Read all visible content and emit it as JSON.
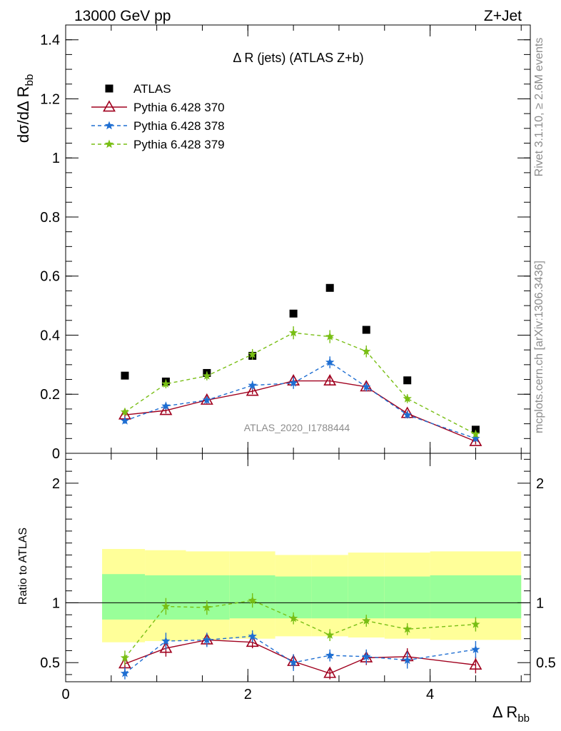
{
  "header": {
    "left_title": "13000 GeV pp",
    "right_title": "Z+Jet"
  },
  "side": {
    "rivet_label": "Rivet 3.1.10, ≥ 2.6M events",
    "mcplots_label": "mcplots.cern.ch [arXiv:1306.3436]"
  },
  "colors": {
    "atlas": "#000000",
    "p370": "#a0001e",
    "p378": "#1e6ed2",
    "p379": "#78be14",
    "band_yellow": "#ffff99",
    "band_green": "#99ff99"
  },
  "chart_data": [
    {
      "type": "scatter",
      "panel": "main",
      "title": "Δ R (jets) (ATLAS Z+b)",
      "analysis_label": "ATLAS_2020_I1788444",
      "ylabel": "dσ/dΔ R",
      "ylabel_sub": "bb",
      "xlim": [
        0,
        5.1
      ],
      "ylim": [
        0,
        1.45
      ],
      "yticks": [
        "0",
        "0.2",
        "0.4",
        "0.6",
        "0.8",
        "1",
        "1.2",
        "1.4"
      ],
      "ytick_values": [
        0,
        0.2,
        0.4,
        0.6,
        0.8,
        1.0,
        1.2,
        1.4
      ],
      "legend_position": "top-left",
      "x": [
        0.65,
        1.1,
        1.55,
        2.05,
        2.5,
        2.9,
        3.3,
        3.75,
        4.5
      ],
      "series": [
        {
          "name": "ATLAS",
          "style": "square",
          "color": "#000000",
          "values": [
            0.263,
            0.243,
            0.272,
            0.33,
            0.473,
            0.56,
            0.418,
            0.247,
            0.08
          ]
        },
        {
          "name": "Pythia 6.428 370",
          "style": "triangle-solid",
          "color": "#a0001e",
          "values": [
            0.13,
            0.145,
            0.18,
            0.21,
            0.245,
            0.245,
            0.225,
            0.135,
            0.04
          ],
          "errors": [
            0.01,
            0.01,
            0.01,
            0.01,
            0.015,
            0.015,
            0.015,
            0.01,
            0.01
          ]
        },
        {
          "name": "Pythia 6.428 378",
          "style": "star-dashed",
          "color": "#1e6ed2",
          "values": [
            0.11,
            0.16,
            0.18,
            0.23,
            0.238,
            0.308,
            0.225,
            0.13,
            0.05
          ],
          "errors": [
            0.01,
            0.012,
            0.012,
            0.015,
            0.02,
            0.02,
            0.015,
            0.012,
            0.01
          ]
        },
        {
          "name": "Pythia 6.428 379",
          "style": "star-dashed",
          "color": "#78be14",
          "values": [
            0.14,
            0.235,
            0.262,
            0.335,
            0.408,
            0.395,
            0.345,
            0.185,
            0.065
          ],
          "errors": [
            0.012,
            0.015,
            0.015,
            0.018,
            0.022,
            0.022,
            0.02,
            0.015,
            0.01
          ]
        }
      ]
    },
    {
      "type": "scatter",
      "panel": "ratio",
      "ylabel": "Ratio to ATLAS",
      "xlabel": "Δ R",
      "xlabel_sub": "bb",
      "xlim": [
        0,
        5.1
      ],
      "ylim": [
        0.34,
        2.25
      ],
      "xticks": [
        "0",
        "2",
        "4"
      ],
      "xtick_values": [
        0,
        2,
        4
      ],
      "yticks": [
        "0.5",
        "1",
        "2"
      ],
      "ytick_values": [
        0.5,
        1,
        2
      ],
      "x": [
        0.65,
        1.1,
        1.55,
        2.05,
        2.5,
        2.9,
        3.3,
        3.75,
        4.5
      ],
      "bins": [
        [
          0.4,
          0.87
        ],
        [
          0.87,
          1.32
        ],
        [
          1.32,
          1.8
        ],
        [
          1.8,
          2.3
        ],
        [
          2.3,
          2.7
        ],
        [
          2.7,
          3.1
        ],
        [
          3.1,
          3.5
        ],
        [
          3.5,
          4.0
        ],
        [
          4.0,
          5.0
        ]
      ],
      "band_yellow": [
        [
          0.67,
          1.45
        ],
        [
          0.68,
          1.44
        ],
        [
          0.69,
          1.43
        ],
        [
          0.7,
          1.43
        ],
        [
          0.72,
          1.4
        ],
        [
          0.72,
          1.4
        ],
        [
          0.71,
          1.42
        ],
        [
          0.7,
          1.42
        ],
        [
          0.69,
          1.43
        ]
      ],
      "band_green": [
        [
          0.86,
          1.24
        ],
        [
          0.86,
          1.23
        ],
        [
          0.86,
          1.23
        ],
        [
          0.87,
          1.23
        ],
        [
          0.87,
          1.22
        ],
        [
          0.87,
          1.22
        ],
        [
          0.87,
          1.22
        ],
        [
          0.87,
          1.22
        ],
        [
          0.87,
          1.23
        ]
      ],
      "series": [
        {
          "name": "Pythia 6.428 370",
          "style": "triangle-solid",
          "color": "#a0001e",
          "values": [
            0.49,
            0.62,
            0.69,
            0.67,
            0.51,
            0.41,
            0.54,
            0.55,
            0.48
          ],
          "errors": [
            0.06,
            0.07,
            0.05,
            0.05,
            0.06,
            0.05,
            0.06,
            0.07,
            0.07
          ]
        },
        {
          "name": "Pythia 6.428 378",
          "style": "star-dashed",
          "color": "#1e6ed2",
          "values": [
            0.41,
            0.68,
            0.69,
            0.72,
            0.5,
            0.56,
            0.55,
            0.52,
            0.61
          ],
          "errors": [
            0.05,
            0.07,
            0.06,
            0.05,
            0.07,
            0.05,
            0.06,
            0.07,
            0.07
          ]
        },
        {
          "name": "Pythia 6.428 379",
          "style": "star-dashed",
          "color": "#78be14",
          "values": [
            0.54,
            0.97,
            0.96,
            1.02,
            0.87,
            0.73,
            0.85,
            0.78,
            0.82
          ],
          "errors": [
            0.06,
            0.07,
            0.06,
            0.06,
            0.05,
            0.05,
            0.05,
            0.05,
            0.06
          ]
        }
      ]
    }
  ]
}
